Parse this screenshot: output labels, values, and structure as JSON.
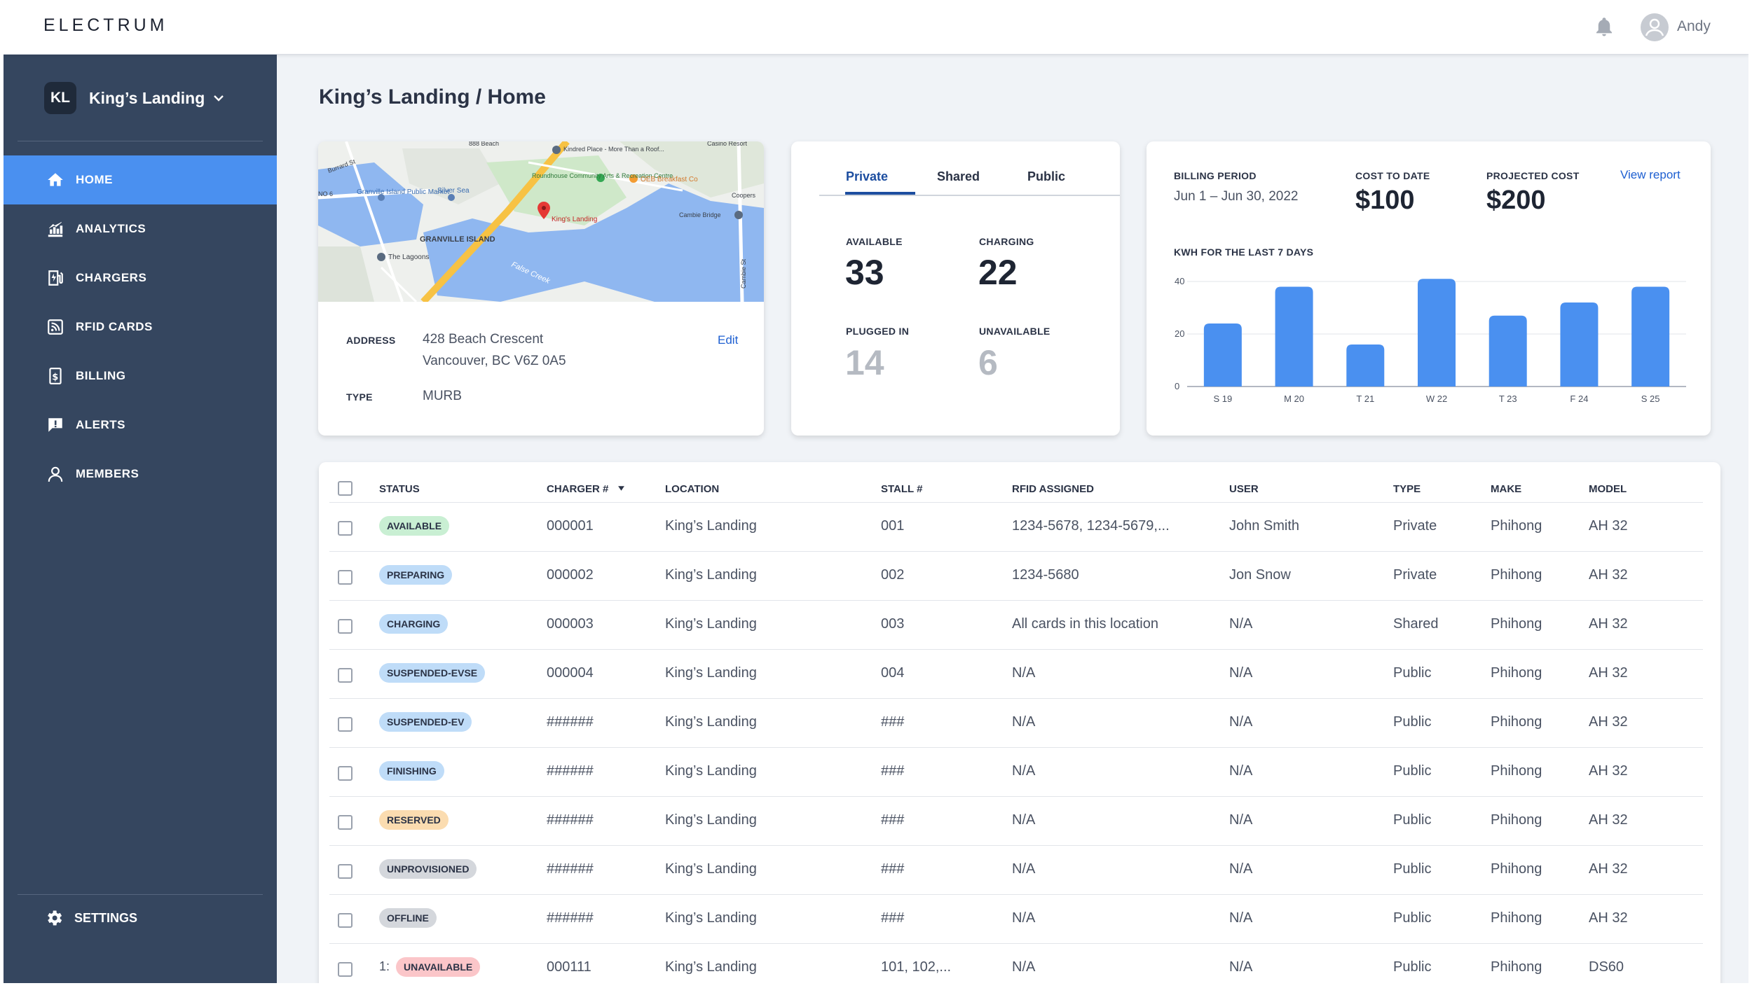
{
  "app": {
    "logo": "ELECTRUM",
    "user": "Andy"
  },
  "sidebar": {
    "workspace_initials": "KL",
    "workspace_name": "King’s Landing",
    "items": [
      {
        "label": "HOME",
        "icon": "home-icon",
        "active": true
      },
      {
        "label": "ANALYTICS",
        "icon": "analytics-icon"
      },
      {
        "label": "CHARGERS",
        "icon": "charger-icon"
      },
      {
        "label": "RFID CARDS",
        "icon": "rfid-icon"
      },
      {
        "label": "BILLING",
        "icon": "billing-icon"
      },
      {
        "label": "ALERTS",
        "icon": "alert-icon"
      },
      {
        "label": "MEMBERS",
        "icon": "member-icon"
      }
    ],
    "settings_label": "SETTINGS"
  },
  "page": {
    "breadcrumb": "King’s Landing / Home"
  },
  "location_card": {
    "map_labels": [
      "Granville Island Public Market",
      "Silver Sea",
      "GRANVILLE ISLAND",
      "The Lagoons",
      "Roundhouse Community Arts & Recreation Centre",
      "OEB Breakfast Co",
      "Kindred Place - More Than a Roof...",
      "King's Landing",
      "False Creek",
      "Cambie Bridge",
      "Coopers",
      "Casino Resort",
      "888 Beach",
      "Burrard St",
      "Cambie St",
      "NO 6"
    ],
    "address_label": "ADDRESS",
    "address_line1": "428 Beach Crescent",
    "address_line2": "Vancouver, BC V6Z 0A5",
    "edit_label": "Edit",
    "type_label": "TYPE",
    "type_value": "MURB"
  },
  "status_card": {
    "tabs": [
      "Private",
      "Shared",
      "Public"
    ],
    "active_tab": "Private",
    "available_label": "AVAILABLE",
    "available": "33",
    "charging_label": "CHARGING",
    "charging": "22",
    "plugged_label": "PLUGGED IN",
    "plugged": "14",
    "unavailable_label": "UNAVAILABLE",
    "unavailable": "6"
  },
  "billing_card": {
    "period_label": "BILLING PERIOD",
    "period": "Jun 1 – Jun 30, 2022",
    "cost_label": "COST TO DATE",
    "cost": "$100",
    "projected_label": "PROJECTED COST",
    "projected": "$200",
    "report_label": "View report",
    "chart_title": "KWH FOR THE LAST 7 DAYS"
  },
  "chart_data": {
    "type": "bar",
    "title": "KWH FOR THE LAST 7 DAYS",
    "categories": [
      "S 19",
      "M 20",
      "T 21",
      "W 22",
      "T 23",
      "F 24",
      "S 25"
    ],
    "values": [
      24,
      38,
      16,
      41,
      27,
      32,
      38
    ],
    "yticks": [
      0,
      20,
      40
    ],
    "ylim": [
      0,
      40
    ],
    "bar_color": "#4a90f0",
    "grid": true
  },
  "table": {
    "headers": [
      "STATUS",
      "CHARGER #",
      "LOCATION",
      "STALL #",
      "RFID ASSIGNED",
      "USER",
      "TYPE",
      "MAKE",
      "MODEL"
    ],
    "rows": [
      {
        "prefix": "",
        "status": "AVAILABLE",
        "charger": "000001",
        "location": "King’s Landing",
        "stall": "001",
        "rfid": "1234-5678, 1234-5679,...",
        "user": "John Smith",
        "type": "Private",
        "make": "Phihong",
        "model": "AH 32"
      },
      {
        "prefix": "",
        "status": "PREPARING",
        "charger": "000002",
        "location": "King’s Landing",
        "stall": "002",
        "rfid": "1234-5680",
        "user": "Jon Snow",
        "type": "Private",
        "make": "Phihong",
        "model": "AH 32"
      },
      {
        "prefix": "",
        "status": "CHARGING",
        "charger": "000003",
        "location": "King’s Landing",
        "stall": "003",
        "rfid": "All cards in this location",
        "user": "N/A",
        "type": "Shared",
        "make": "Phihong",
        "model": "AH 32"
      },
      {
        "prefix": "",
        "status": "SUSPENDED-EVSE",
        "charger": "000004",
        "location": "King’s Landing",
        "stall": "004",
        "rfid": "N/A",
        "user": "N/A",
        "type": "Public",
        "make": "Phihong",
        "model": "AH 32"
      },
      {
        "prefix": "",
        "status": "SUSPENDED-EV",
        "charger": "######",
        "location": "King’s Landing",
        "stall": "###",
        "rfid": "N/A",
        "user": "N/A",
        "type": "Public",
        "make": "Phihong",
        "model": "AH 32"
      },
      {
        "prefix": "",
        "status": "FINISHING",
        "charger": "######",
        "location": "King’s Landing",
        "stall": "###",
        "rfid": "N/A",
        "user": "N/A",
        "type": "Public",
        "make": "Phihong",
        "model": "AH 32"
      },
      {
        "prefix": "",
        "status": "RESERVED",
        "charger": "######",
        "location": "King’s Landing",
        "stall": "###",
        "rfid": "N/A",
        "user": "N/A",
        "type": "Public",
        "make": "Phihong",
        "model": "AH 32"
      },
      {
        "prefix": "",
        "status": "UNPROVISIONED",
        "charger": "######",
        "location": "King’s Landing",
        "stall": "###",
        "rfid": "N/A",
        "user": "N/A",
        "type": "Public",
        "make": "Phihong",
        "model": "AH 32"
      },
      {
        "prefix": "",
        "status": "OFFLINE",
        "charger": "######",
        "location": "King’s Landing",
        "stall": "###",
        "rfid": "N/A",
        "user": "N/A",
        "type": "Public",
        "make": "Phihong",
        "model": "AH 32"
      },
      {
        "prefix": "1:",
        "status": "UNAVAILABLE",
        "charger": "000111",
        "location": "King’s Landing",
        "stall": "101, 102,...",
        "rfid": "N/A",
        "user": "N/A",
        "type": "Public",
        "make": "Phihong",
        "model": "DS60"
      }
    ]
  },
  "status_colors": {
    "AVAILABLE": "#c9efd3",
    "PREPARING": "#bfdcf8",
    "CHARGING": "#bfdcf8",
    "SUSPENDED-EVSE": "#bfdcf8",
    "SUSPENDED-EV": "#bfdcf8",
    "FINISHING": "#bfdcf8",
    "RESERVED": "#fbdcb0",
    "UNPROVISIONED": "#d4d7dc",
    "OFFLINE": "#d4d7dc",
    "UNAVAILABLE": "#fbc6c9"
  }
}
